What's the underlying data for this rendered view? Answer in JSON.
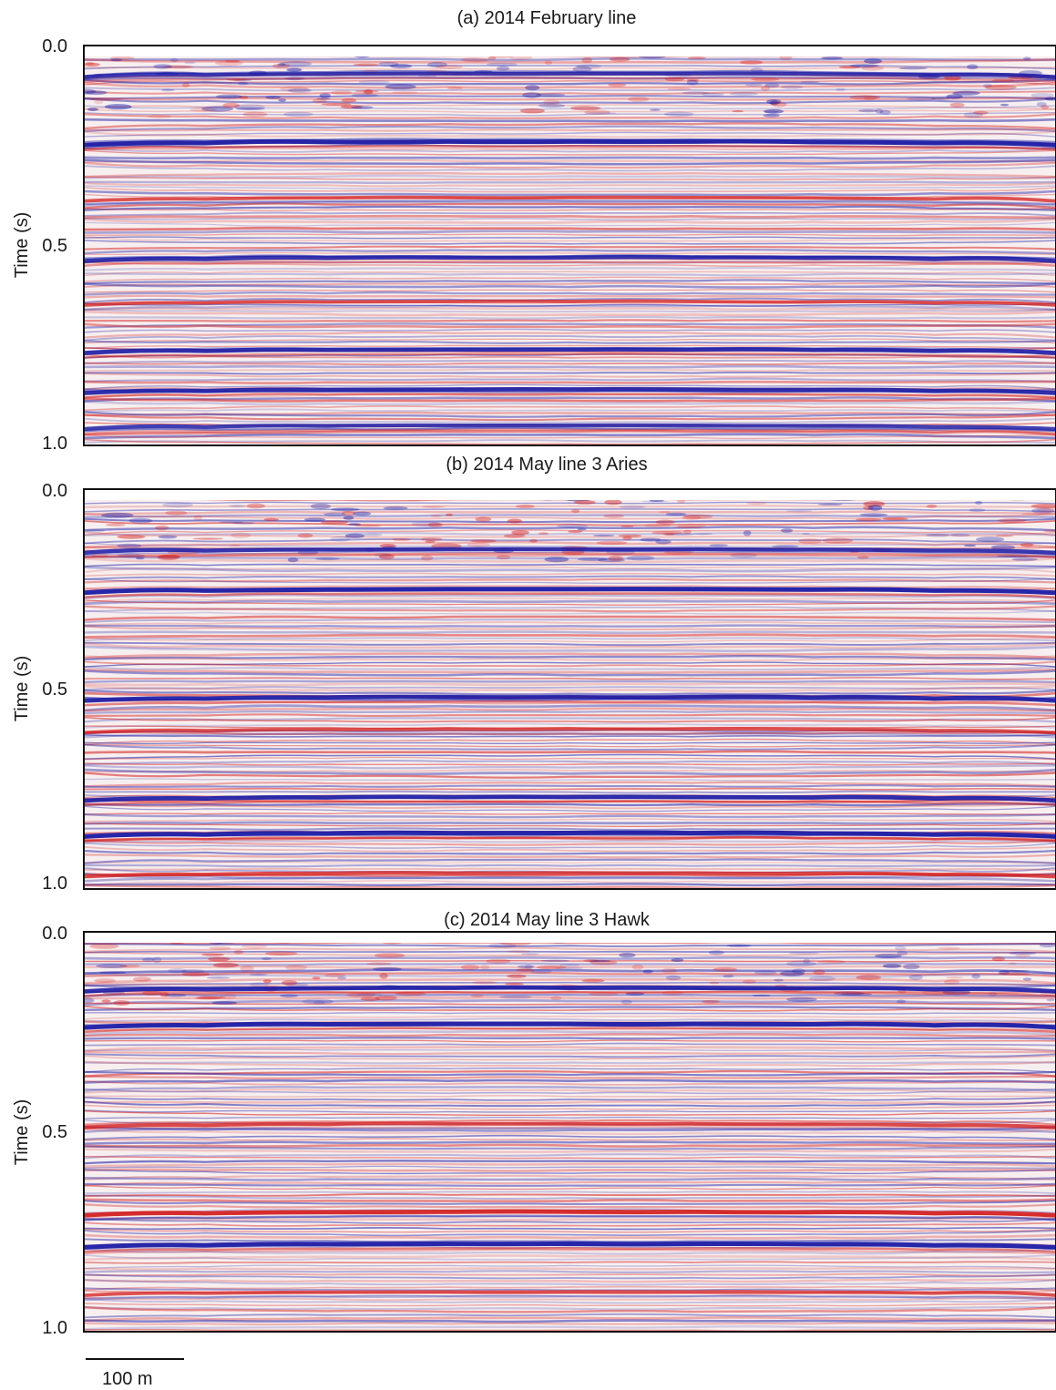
{
  "chart_data": [
    {
      "type": "heatmap",
      "title": "(a) 2014 February line",
      "ylabel": "Time (s)",
      "ylim": [
        0.0,
        1.0
      ],
      "y_ticks": [
        "0.0",
        "0.5",
        "1.0"
      ],
      "y_inverted": true,
      "colormap": {
        "negative": "#1c1ca6",
        "zero": "#ffffff",
        "positive": "#d41c1c"
      },
      "reflectors": [
        {
          "time": 0.07,
          "polarity": "blue",
          "strength": 0.7
        },
        {
          "time": 0.24,
          "polarity": "blue",
          "strength": 1.0
        },
        {
          "time": 0.38,
          "polarity": "red",
          "strength": 0.5
        },
        {
          "time": 0.53,
          "polarity": "blue",
          "strength": 0.8
        },
        {
          "time": 0.64,
          "polarity": "red",
          "strength": 0.5
        },
        {
          "time": 0.76,
          "polarity": "blue",
          "strength": 0.9
        },
        {
          "time": 0.86,
          "polarity": "blue",
          "strength": 0.9
        },
        {
          "time": 0.95,
          "polarity": "blue",
          "strength": 0.7
        }
      ]
    },
    {
      "type": "heatmap",
      "title": "(b) 2014 May line 3 Aries",
      "ylabel": "Time (s)",
      "ylim": [
        0.0,
        1.0
      ],
      "y_ticks": [
        "0.0",
        "0.5",
        "1.0"
      ],
      "y_inverted": true,
      "colormap": {
        "negative": "#1c1ca6",
        "zero": "#ffffff",
        "positive": "#d41c1c"
      },
      "reflectors": [
        {
          "time": 0.15,
          "polarity": "blue",
          "strength": 0.8
        },
        {
          "time": 0.25,
          "polarity": "blue",
          "strength": 1.0
        },
        {
          "time": 0.52,
          "polarity": "blue",
          "strength": 0.9
        },
        {
          "time": 0.6,
          "polarity": "red",
          "strength": 0.5
        },
        {
          "time": 0.77,
          "polarity": "blue",
          "strength": 0.9
        },
        {
          "time": 0.86,
          "polarity": "blue",
          "strength": 1.0
        },
        {
          "time": 0.96,
          "polarity": "red",
          "strength": 0.6
        }
      ]
    },
    {
      "type": "heatmap",
      "title": "(c) 2014 May line 3 Hawk",
      "ylabel": "Time (s)",
      "ylim": [
        0.0,
        1.0
      ],
      "y_ticks": [
        "0.0",
        "0.5",
        "1.0"
      ],
      "y_inverted": true,
      "colormap": {
        "negative": "#1c1ca6",
        "zero": "#ffffff",
        "positive": "#d41c1c"
      },
      "reflectors": [
        {
          "time": 0.14,
          "polarity": "blue",
          "strength": 0.9
        },
        {
          "time": 0.23,
          "polarity": "blue",
          "strength": 1.0
        },
        {
          "time": 0.48,
          "polarity": "red",
          "strength": 0.6
        },
        {
          "time": 0.7,
          "polarity": "red",
          "strength": 0.9
        },
        {
          "time": 0.78,
          "polarity": "blue",
          "strength": 1.0
        },
        {
          "time": 0.9,
          "polarity": "red",
          "strength": 0.5
        }
      ]
    }
  ],
  "scale_bar": {
    "label": "100 m",
    "length_m": 100
  }
}
